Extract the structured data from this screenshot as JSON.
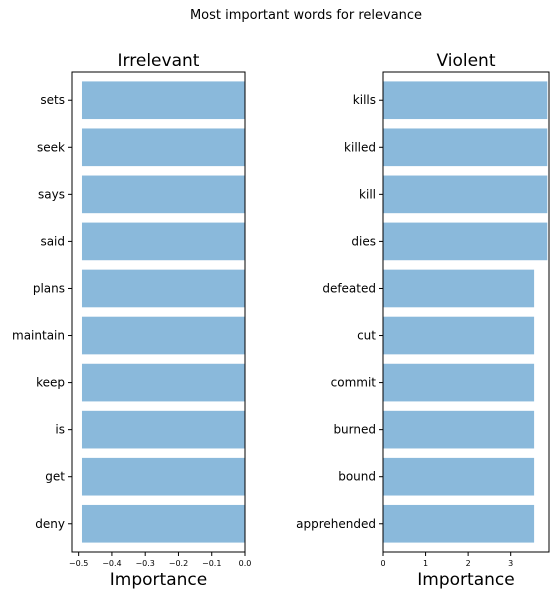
{
  "figure": {
    "suptitle": "Most important words for relevance"
  },
  "colors": {
    "bar": "#8ab9db"
  },
  "chart_data": [
    {
      "type": "bar",
      "orientation": "horizontal",
      "title": "Irrelevant",
      "xlabel": "Importance",
      "ylabel": "",
      "categories": [
        "sets",
        "seek",
        "says",
        "said",
        "plans",
        "maintain",
        "keep",
        "is",
        "get",
        "deny"
      ],
      "values": [
        -0.49,
        -0.49,
        -0.49,
        -0.49,
        -0.49,
        -0.49,
        -0.49,
        -0.49,
        -0.49,
        -0.49
      ],
      "xlim": [
        -0.52,
        0.0
      ],
      "xticks": [
        -0.5,
        -0.4,
        -0.3,
        -0.2,
        -0.1,
        0.0
      ],
      "xtick_labels": [
        "−0.5",
        "−0.4",
        "−0.3",
        "−0.2",
        "−0.1",
        "0.0"
      ],
      "grid": false
    },
    {
      "type": "bar",
      "orientation": "horizontal",
      "title": "Violent",
      "xlabel": "Importance",
      "ylabel": "",
      "categories": [
        "kills",
        "killed",
        "kill",
        "dies",
        "defeated",
        "cut",
        "commit",
        "burned",
        "bound",
        "apprehended"
      ],
      "values": [
        3.86,
        3.86,
        3.86,
        3.86,
        3.55,
        3.55,
        3.55,
        3.55,
        3.55,
        3.55
      ],
      "xlim": [
        0,
        3.9
      ],
      "xticks": [
        0,
        1,
        2,
        3
      ],
      "xtick_labels": [
        "0",
        "1",
        "2",
        "3"
      ],
      "grid": false
    }
  ]
}
